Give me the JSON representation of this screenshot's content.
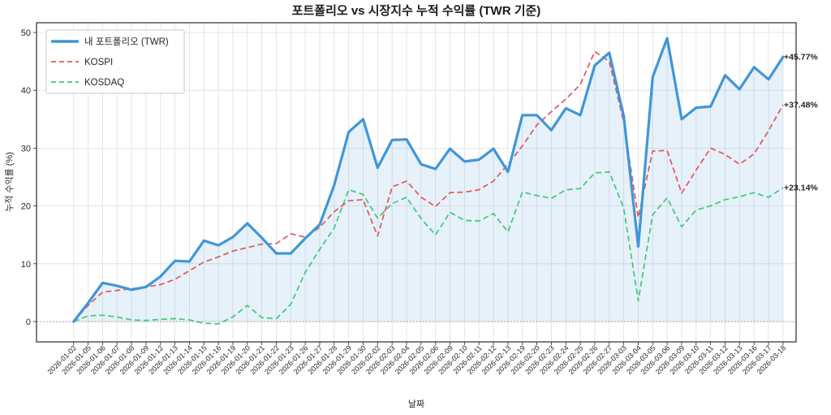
{
  "chart_data": {
    "type": "line",
    "title": "포트폴리오 vs 시장지수 누적 수익률 (TWR 기준)",
    "xlabel": "날짜",
    "ylabel": "누적 수익률 (%)",
    "yticks": [
      0,
      10,
      20,
      30,
      40,
      50
    ],
    "ylim": [
      -3.5,
      51.7
    ],
    "grid": true,
    "legend_position": "upper-left",
    "categories": [
      "2026-01-02",
      "2026-01-05",
      "2026-01-06",
      "2026-01-07",
      "2026-01-08",
      "2026-01-09",
      "2026-01-12",
      "2026-01-13",
      "2026-01-14",
      "2026-01-15",
      "2026-01-16",
      "2026-01-19",
      "2026-01-20",
      "2026-01-21",
      "2026-01-22",
      "2026-01-23",
      "2026-01-26",
      "2026-01-27",
      "2026-01-28",
      "2026-01-29",
      "2026-01-30",
      "2026-02-02",
      "2026-02-03",
      "2026-02-04",
      "2026-02-05",
      "2026-02-06",
      "2026-02-09",
      "2026-02-10",
      "2026-02-11",
      "2026-02-12",
      "2026-02-13",
      "2026-02-19",
      "2026-02-20",
      "2026-02-23",
      "2026-02-24",
      "2026-02-25",
      "2026-02-26",
      "2026-02-27",
      "2026-03-03",
      "2026-03-04",
      "2026-03-05",
      "2026-03-06",
      "2026-03-09",
      "2026-03-10",
      "2026-03-11",
      "2026-03-12",
      "2026-03-13",
      "2026-03-16",
      "2026-03-17",
      "2026-03-18"
    ],
    "series": [
      {
        "name": "내 포트폴리오 (TWR)",
        "color": "#3f96d9",
        "fill_color": "rgba(66,148,214,0.13)",
        "style": "solid",
        "width": 3.2,
        "fill": true,
        "end_label": "+45.77%",
        "values": [
          0.0,
          3.2,
          6.7,
          6.2,
          5.5,
          6.0,
          7.8,
          10.5,
          10.4,
          14.0,
          13.2,
          14.6,
          17.0,
          14.5,
          11.8,
          11.8,
          14.4,
          16.8,
          23.6,
          32.8,
          35.0,
          26.6,
          31.4,
          31.5,
          27.2,
          26.4,
          29.9,
          27.7,
          28.0,
          29.9,
          25.9,
          35.7,
          35.7,
          33.1,
          36.9,
          35.7,
          44.3,
          46.5,
          35.5,
          13.0,
          42.3,
          49.0,
          35.0,
          37.0,
          37.2,
          42.6,
          40.2,
          44.0,
          41.9,
          45.77
        ]
      },
      {
        "name": "KOSPI",
        "color": "#e15757",
        "style": "dashed",
        "width": 1.7,
        "fill": false,
        "end_label": "+37.48%",
        "values": [
          0.0,
          2.8,
          5.1,
          5.4,
          5.7,
          6.0,
          6.4,
          7.3,
          8.8,
          10.3,
          11.2,
          12.2,
          12.8,
          13.4,
          13.5,
          15.2,
          14.6,
          16.3,
          19.0,
          20.9,
          21.1,
          14.8,
          23.3,
          24.3,
          21.5,
          19.9,
          22.3,
          22.4,
          22.8,
          24.3,
          27.2,
          30.4,
          34.0,
          36.3,
          38.5,
          41.0,
          46.7,
          45.0,
          34.5,
          18.0,
          29.5,
          29.6,
          22.2,
          26.2,
          30.0,
          28.9,
          27.2,
          29.0,
          33.0,
          37.48
        ]
      },
      {
        "name": "KOSDAQ",
        "color": "#3ec878",
        "style": "dashed",
        "width": 1.7,
        "fill": false,
        "end_label": "+23.14%",
        "values": [
          0.0,
          1.0,
          1.1,
          0.8,
          0.3,
          0.2,
          0.4,
          0.5,
          0.3,
          -0.3,
          -0.4,
          0.8,
          2.8,
          0.7,
          0.5,
          3.0,
          8.5,
          12.5,
          16.2,
          22.8,
          22.0,
          17.9,
          20.4,
          21.5,
          17.8,
          15.0,
          18.9,
          17.5,
          17.4,
          18.7,
          15.5,
          22.4,
          21.8,
          21.3,
          22.8,
          23.0,
          25.7,
          25.9,
          19.6,
          3.6,
          18.5,
          21.4,
          16.4,
          19.3,
          20.0,
          21.1,
          21.6,
          22.3,
          21.5,
          23.14
        ]
      }
    ]
  }
}
